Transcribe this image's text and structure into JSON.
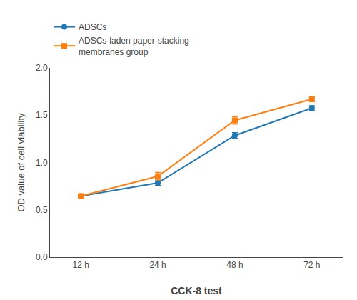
{
  "chart_data": {
    "type": "line",
    "categories": [
      "12 h",
      "24 h",
      "48 h",
      "72 h"
    ],
    "series": [
      {
        "name": "ADSCs",
        "values": [
          0.645,
          0.785,
          1.285,
          1.575
        ],
        "errors": [
          0.01,
          0.025,
          0.03,
          0.025
        ],
        "marker": "circle"
      },
      {
        "name": "ADSCs-laden paper-stacking\nmembranes group",
        "values": [
          0.645,
          0.855,
          1.445,
          1.67
        ],
        "errors": [
          0.01,
          0.04,
          0.04,
          0.025
        ],
        "marker": "square"
      }
    ],
    "xlabel": "CCK-8 test",
    "ylabel": "OD value of cell viability",
    "ylim": [
      0.0,
      2.0
    ],
    "yticks": [
      {
        "value": 0.0,
        "label": "0.0"
      },
      0.5,
      {
        "value": 1.0,
        "label": "1.0"
      },
      1.5,
      {
        "value": 2.0,
        "label": "2.0"
      }
    ],
    "grid": false,
    "legend": "upper left"
  }
}
